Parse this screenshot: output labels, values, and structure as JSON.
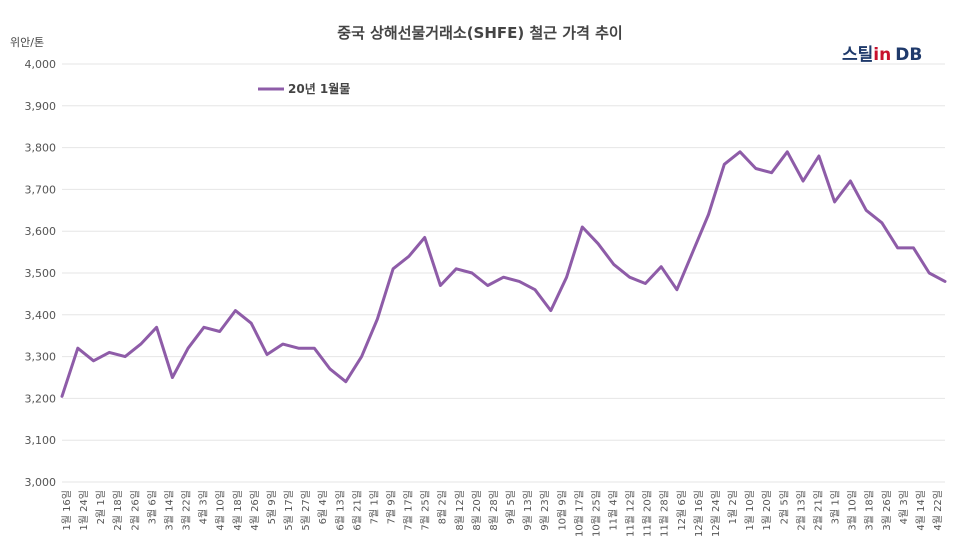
{
  "chart_data": {
    "type": "line",
    "title": "중국 상해선물거래소(SHFE) 철근 가격 추이",
    "ylabel": "위안/톤",
    "watermark": {
      "text_a": "스틸",
      "text_b": "in",
      "text_c": "DB",
      "color_a": "#1f3a6b",
      "color_b": "#c8102e"
    },
    "ylim": [
      3000,
      4000
    ],
    "yticks": [
      "3,000",
      "3,100",
      "3,200",
      "3,300",
      "3,400",
      "3,500",
      "3,600",
      "3,700",
      "3,800",
      "3,900",
      "4,000"
    ],
    "grid": true,
    "legend_position": "top",
    "n_points": 280,
    "x_tick_labels": [
      "1월 16일",
      "1월 24일",
      "2월 1일",
      "2월 18일",
      "2월 26일",
      "3월 6일",
      "3월 14일",
      "3월 22일",
      "4월 3일",
      "4월 10일",
      "4월 18일",
      "4월 26일",
      "5월 9일",
      "5월 17일",
      "5월 27일",
      "6월 4일",
      "6월 13일",
      "6월 21일",
      "7월 1일",
      "7월 9일",
      "7월 17일",
      "7월 25일",
      "8월 2일",
      "8월 12일",
      "8월 20일",
      "8월 28일",
      "9월 5일",
      "9월 13일",
      "9월 23일",
      "10월 9일",
      "10월 17일",
      "10월 25일",
      "11월 4일",
      "11월 12일",
      "11월 20일",
      "11월 28일",
      "12월 6일",
      "12월 16일",
      "12월 24일",
      "1월 2일",
      "1월 10일",
      "1월 20일",
      "2월 5일",
      "2월 13일",
      "2월 21일",
      "3월 1일",
      "3월 10일",
      "3월 18일",
      "3월 26일",
      "4월 3일",
      "4월 14일",
      "4월 22일"
    ],
    "series": [
      {
        "name": "20년 1월물",
        "color": "#8e5ca8",
        "points": [
          [
            0,
            3205
          ],
          [
            5,
            3320
          ],
          [
            10,
            3290
          ],
          [
            15,
            3310
          ],
          [
            20,
            3300
          ],
          [
            25,
            3330
          ],
          [
            30,
            3370
          ],
          [
            35,
            3250
          ],
          [
            40,
            3320
          ],
          [
            45,
            3370
          ],
          [
            50,
            3360
          ],
          [
            55,
            3410
          ],
          [
            60,
            3380
          ],
          [
            65,
            3305
          ],
          [
            70,
            3330
          ],
          [
            75,
            3320
          ],
          [
            80,
            3320
          ],
          [
            85,
            3270
          ],
          [
            90,
            3240
          ],
          [
            95,
            3300
          ],
          [
            100,
            3390
          ],
          [
            105,
            3510
          ],
          [
            110,
            3540
          ],
          [
            115,
            3585
          ],
          [
            120,
            3470
          ],
          [
            125,
            3510
          ],
          [
            130,
            3500
          ],
          [
            135,
            3470
          ],
          [
            140,
            3490
          ],
          [
            145,
            3480
          ],
          [
            150,
            3460
          ],
          [
            155,
            3410
          ],
          [
            160,
            3490
          ],
          [
            165,
            3610
          ],
          [
            170,
            3570
          ],
          [
            175,
            3520
          ],
          [
            180,
            3490
          ],
          [
            185,
            3475
          ],
          [
            190,
            3515
          ],
          [
            195,
            3460
          ],
          [
            200,
            3550
          ],
          [
            205,
            3640
          ],
          [
            210,
            3760
          ],
          [
            215,
            3790
          ],
          [
            220,
            3750
          ],
          [
            225,
            3740
          ],
          [
            230,
            3790
          ],
          [
            235,
            3720
          ],
          [
            240,
            3780
          ],
          [
            245,
            3670
          ],
          [
            250,
            3720
          ],
          [
            255,
            3650
          ],
          [
            260,
            3620
          ],
          [
            265,
            3560
          ],
          [
            270,
            3560
          ],
          [
            275,
            3500
          ],
          [
            280,
            3480
          ]
        ],
        "start_index": 0
      }
    ]
  }
}
